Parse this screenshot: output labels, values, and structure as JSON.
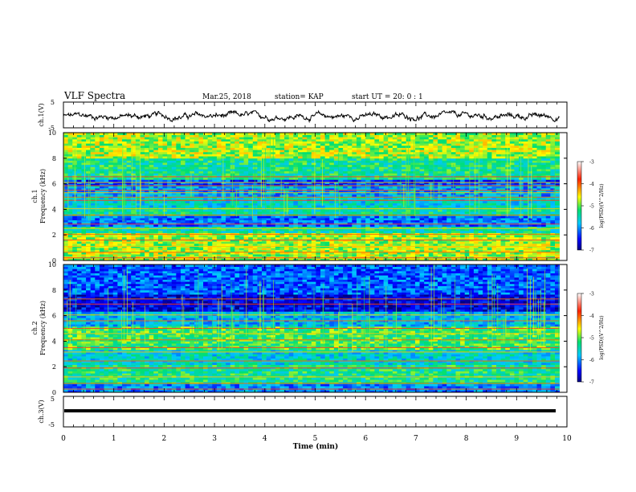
{
  "header": {
    "title": "VLF Spectra",
    "date": "Mar.25, 2018",
    "station": "station= KAP",
    "start": "start  UT =   20: 0  : 1"
  },
  "chart_data": [
    {
      "type": "line",
      "panel": "ch1-waveform",
      "ylabel": "ch.1(V)",
      "ylim": [
        -5,
        5
      ],
      "yticks": [
        "5",
        "-5"
      ],
      "xlim": [
        0,
        10
      ],
      "grid": false,
      "series": [
        {
          "values": "noisy waveform fluctuating around about -0.5 V between roughly -2.5 and 1.5 V over 0 to 9.85 min"
        }
      ]
    },
    {
      "type": "heatmap",
      "panel": "ch1-spectrogram",
      "ylabel_channel": "ch.1",
      "ylabel": "Frequency (kHz)",
      "ylim": [
        0,
        10
      ],
      "yticks": [
        "0",
        "2",
        "4",
        "6",
        "8",
        "10"
      ],
      "xlim": [
        0,
        10
      ],
      "colorbar": {
        "label": "log(PSD)(V^2/Hz)",
        "range": [
          -7,
          -3
        ],
        "ticks": [
          "-3",
          "-4",
          "-5",
          "-6",
          "-7"
        ]
      },
      "lines_khz": [
        0.2,
        0.65,
        1.1,
        1.6,
        2.05,
        2.5,
        2.85,
        3.55,
        4.05,
        4.7,
        4.95,
        5.3,
        5.5,
        5.85,
        6.1,
        6.55
      ],
      "bands": [
        {
          "from_khz": 0,
          "to_khz": 2.2,
          "level": -4.8
        },
        {
          "from_khz": 2.2,
          "to_khz": 2.6,
          "level": -5.4
        },
        {
          "from_khz": 2.6,
          "to_khz": 3.5,
          "level": -6.1
        },
        {
          "from_khz": 3.5,
          "to_khz": 4.2,
          "level": -5.4
        },
        {
          "from_khz": 4.2,
          "to_khz": 5.0,
          "level": -5.6
        },
        {
          "from_khz": 5.0,
          "to_khz": 5.8,
          "level": -5.9
        },
        {
          "from_khz": 5.8,
          "to_khz": 6.3,
          "level": -6.3
        },
        {
          "from_khz": 6.3,
          "to_khz": 8.0,
          "level": -5.3
        },
        {
          "from_khz": 8.0,
          "to_khz": 10.0,
          "level": -4.8
        }
      ]
    },
    {
      "type": "heatmap",
      "panel": "ch2-spectrogram",
      "ylabel_channel": "ch.2",
      "ylabel": "Frequency (kHz)",
      "ylim": [
        0,
        10
      ],
      "yticks": [
        "0",
        "2",
        "4",
        "6",
        "8",
        "10"
      ],
      "xlim": [
        0,
        10
      ],
      "colorbar": {
        "label": "log(PSD)(V^2/Hz)",
        "range": [
          -7,
          -3
        ],
        "ticks": [
          "-3",
          "-4",
          "-5",
          "-6",
          "-7"
        ]
      },
      "lines_khz": [
        0.25,
        0.7,
        1.2,
        1.9,
        2.45,
        3.15,
        3.5,
        4.1,
        4.6,
        5.0,
        5.6,
        6.05,
        6.9,
        7.3
      ],
      "bands": [
        {
          "from_khz": 0,
          "to_khz": 0.6,
          "level": -6.0
        },
        {
          "from_khz": 0.6,
          "to_khz": 2.2,
          "level": -5.3
        },
        {
          "from_khz": 2.2,
          "to_khz": 3.3,
          "level": -5.6
        },
        {
          "from_khz": 3.3,
          "to_khz": 5.2,
          "level": -5.1
        },
        {
          "from_khz": 5.2,
          "to_khz": 6.3,
          "level": -5.8
        },
        {
          "from_khz": 6.3,
          "to_khz": 7.6,
          "level": -6.6
        },
        {
          "from_khz": 7.6,
          "to_khz": 10.0,
          "level": -6.2
        }
      ]
    },
    {
      "type": "line",
      "panel": "ch3-waveform",
      "ylabel": "ch.3(V)",
      "ylim": [
        -5,
        5
      ],
      "yticks": [
        "5",
        "-5"
      ],
      "xlim": [
        0,
        10
      ],
      "xlabel": "Time (min)",
      "xticks": [
        "0",
        "1",
        "2",
        "3",
        "4",
        "5",
        "6",
        "7",
        "8",
        "9",
        "10"
      ],
      "grid": false,
      "series": [
        {
          "values": "flat line at about 0 V from 0 to 9.85 min"
        }
      ]
    }
  ]
}
